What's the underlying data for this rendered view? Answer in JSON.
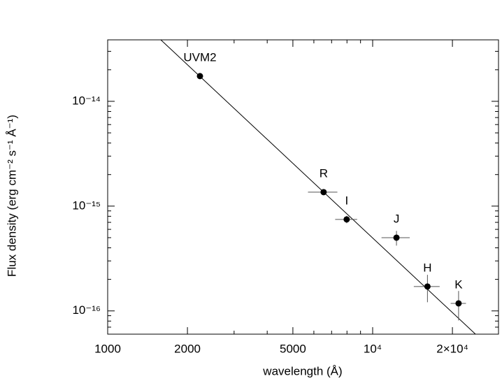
{
  "chart_data": {
    "type": "scatter",
    "xlabel": "wavelength (Å)",
    "ylabel": "Flux density (erg cm⁻² s⁻¹ Å⁻¹)",
    "xlog": true,
    "ylog": true,
    "xlim": [
      1000,
      29850
    ],
    "ylim": [
      6e-17,
      3.86e-14
    ],
    "xticks": [
      1000,
      2000,
      5000,
      {
        "value": 10000,
        "label": "10⁴"
      },
      {
        "value": 20000,
        "label": "2×10⁴"
      }
    ],
    "xminor_ticks": [
      3000,
      4000,
      6000,
      7000,
      8000,
      9000
    ],
    "yticks": [
      {
        "value": 1e-16,
        "label": "10⁻¹⁶"
      },
      {
        "value": 1e-15,
        "label": "10⁻¹⁵"
      },
      {
        "value": 1e-14,
        "label": "10⁻¹⁴"
      }
    ],
    "yminor_ticks": [
      7e-17,
      8e-17,
      9e-17,
      2e-16,
      3e-16,
      4e-16,
      5e-16,
      6e-16,
      7e-16,
      8e-16,
      9e-16,
      2e-15,
      3e-15,
      4e-15,
      5e-15,
      6e-15,
      7e-15,
      8e-15,
      9e-15,
      2e-14,
      3e-14
    ],
    "labels": [
      "UVM2",
      "R",
      "I",
      "J",
      "H",
      "K"
    ],
    "x": [
      2230,
      6530,
      7980,
      12300,
      16100,
      21100
    ],
    "values": [
      1.74e-14,
      1.36e-15,
      7.47e-16,
      5e-16,
      1.71e-16,
      1.18e-16
    ],
    "xerr": [
      null,
      830,
      760,
      1500,
      1800,
      1400
    ],
    "yerr": [
      null,
      null,
      6e-17,
      8e-17,
      5e-17,
      3.7e-17
    ],
    "color": "#000000",
    "fit_line": {
      "x": [
        1587,
        24440
      ],
      "values": [
        3.86e-14,
        6e-17
      ]
    }
  }
}
